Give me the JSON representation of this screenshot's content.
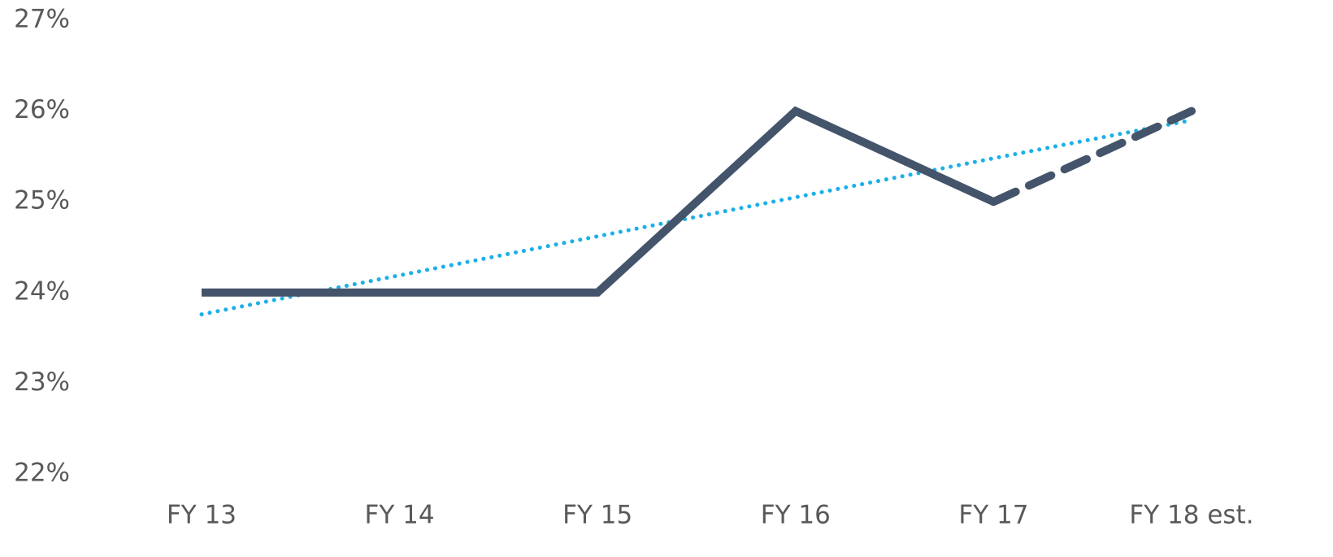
{
  "chart_data": {
    "type": "line",
    "categories": [
      "FY 13",
      "FY 14",
      "FY 15",
      "FY 16",
      "FY 17",
      "FY 18 est."
    ],
    "series": [
      {
        "color": "#44546a",
        "style": "solid",
        "values": [
          24,
          24,
          24,
          26,
          25,
          null
        ]
      },
      {
        "color": "#44546a",
        "style": "dashed",
        "values": [
          null,
          null,
          null,
          null,
          25,
          26
        ]
      },
      {
        "color": "#1cb0e8",
        "style": "dotted",
        "values": [
          23.76,
          24.19,
          24.62,
          25.05,
          25.48,
          25.9
        ]
      }
    ],
    "ylim": [
      22,
      27
    ],
    "yticks": [
      {
        "value": 22,
        "label": "22%"
      },
      {
        "value": 23,
        "label": "23%"
      },
      {
        "value": 24,
        "label": "24%"
      },
      {
        "value": 25,
        "label": "25%"
      },
      {
        "value": 26,
        "label": "26%"
      },
      {
        "value": 27,
        "label": "27%"
      }
    ],
    "grid": false
  }
}
